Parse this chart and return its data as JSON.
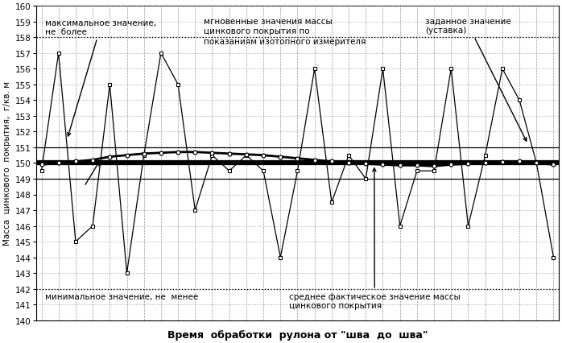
{
  "ylim": [
    140,
    160
  ],
  "yticks": [
    140,
    141,
    142,
    143,
    144,
    145,
    146,
    147,
    148,
    149,
    150,
    151,
    152,
    153,
    154,
    155,
    156,
    157,
    158,
    159,
    160
  ],
  "max_line": 158,
  "min_line": 142,
  "setpoint_line": 150,
  "band_upper": 151,
  "band_lower": 149,
  "xlabel": "Время  обработки  рулона от \"шва  до  шва\"",
  "ylabel": "Масса  цинкового  покрытия,  г/кв. м",
  "bg_color": "#ffffff",
  "grid_color": "#999999",
  "annotation_max": "максимальное значение,\nне  более",
  "annotation_min": "минимальное значение, не  менее",
  "annotation_instant": "мгновенные значения массы\nцинкового покрытия по\nпоказаниям изотопного измерителя",
  "annotation_setpoint": "заданное значение\n(уставка)",
  "annotation_avg": "среднее фактическое значение массы\nцинкового покрытия",
  "instant_x": [
    0,
    1,
    2,
    3,
    4,
    5,
    6,
    7,
    8,
    9,
    10,
    11,
    12,
    13,
    14,
    15,
    16,
    17,
    18,
    19,
    20,
    21,
    22,
    23,
    24,
    25,
    26,
    27,
    28,
    29,
    30
  ],
  "instant_y": [
    149.5,
    157,
    145,
    146,
    155,
    143,
    150.5,
    157,
    155,
    147,
    150.5,
    149.5,
    150.5,
    149.5,
    144,
    149.5,
    156,
    147.5,
    150.5,
    149,
    156,
    146,
    149.5,
    149.5,
    156,
    146,
    150.5,
    156,
    154,
    150,
    144
  ],
  "avg_x": [
    0,
    1,
    2,
    3,
    4,
    5,
    6,
    7,
    8,
    9,
    10,
    11,
    12,
    13,
    14,
    15,
    16,
    17,
    18,
    19,
    20,
    21,
    22,
    23,
    24,
    25,
    26,
    27,
    28,
    29,
    30
  ],
  "avg_y": [
    149.9,
    150.0,
    150.1,
    150.2,
    150.4,
    150.5,
    150.6,
    150.65,
    150.7,
    150.7,
    150.65,
    150.6,
    150.55,
    150.5,
    150.4,
    150.3,
    150.2,
    150.1,
    150.0,
    149.95,
    149.9,
    149.85,
    149.85,
    149.8,
    149.9,
    149.95,
    150.0,
    150.05,
    150.1,
    150.0,
    149.9
  ]
}
